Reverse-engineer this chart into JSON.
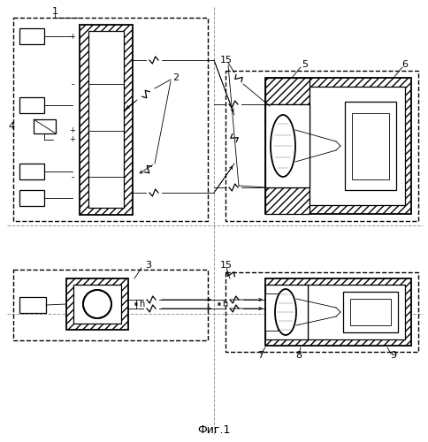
{
  "title": "Фиг.1",
  "labels": {
    "1": "1",
    "2": "2",
    "3": "3",
    "4": "4",
    "5": "5",
    "6": "6",
    "7": "7",
    "8": "8",
    "9": "9",
    "15": "15",
    "h": "h"
  },
  "bg_color": "#ffffff"
}
